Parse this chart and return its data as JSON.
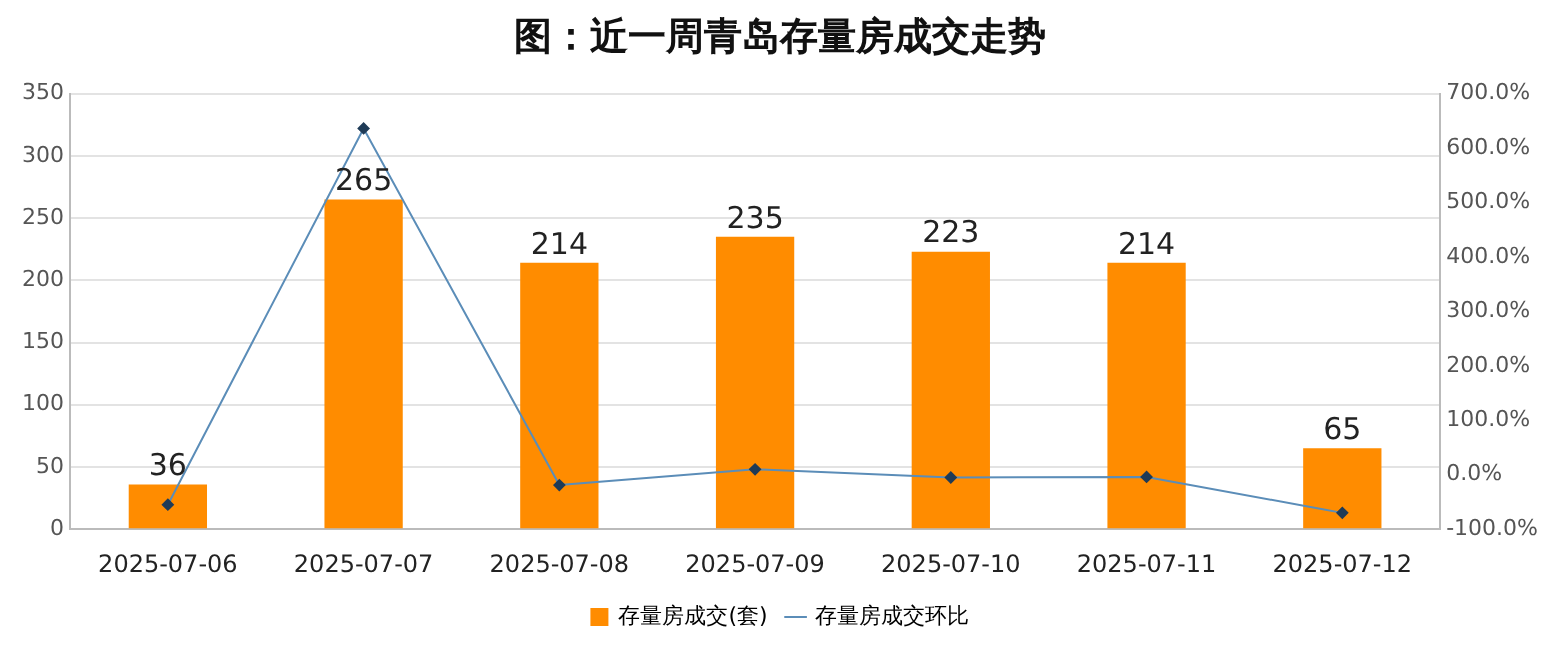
{
  "chart_data": {
    "type": "bar",
    "title": "图：近一周青岛存量房成交走势",
    "categories": [
      "2025-07-06",
      "2025-07-07",
      "2025-07-08",
      "2025-07-09",
      "2025-07-10",
      "2025-07-11",
      "2025-07-12"
    ],
    "series": [
      {
        "name": "存量房成交(套)",
        "color": "#ff8c00",
        "values": [
          36,
          265,
          214,
          235,
          223,
          214,
          65
        ],
        "value_labels": [
          "36",
          "265",
          "214",
          "235",
          "223",
          "214",
          "65"
        ]
      },
      {
        "name": "存量房成交环比",
        "type": "line",
        "axis": "y2",
        "color": "#5b8db8",
        "values": [
          -55,
          636,
          -19,
          10,
          -5,
          -4,
          -70
        ]
      }
    ],
    "ylim": [
      0,
      350
    ],
    "yticks": [
      0,
      50,
      100,
      150,
      200,
      250,
      300,
      350
    ],
    "y2lim": [
      -100,
      700
    ],
    "y2ticks": [
      {
        "value": -100,
        "label": "-100.0%"
      },
      {
        "value": 0,
        "label": "0.0%"
      },
      {
        "value": 100,
        "label": "100.0%"
      },
      {
        "value": 200,
        "label": "200.0%"
      },
      {
        "value": 300,
        "label": "300.0%"
      },
      {
        "value": 400,
        "label": "400.0%"
      },
      {
        "value": 500,
        "label": "500.0%"
      },
      {
        "value": 600,
        "label": "600.0%"
      },
      {
        "value": 700,
        "label": "700.0%"
      }
    ],
    "grid": "y",
    "legend": "bottom",
    "marker": "diamond",
    "line_style": "solid"
  }
}
